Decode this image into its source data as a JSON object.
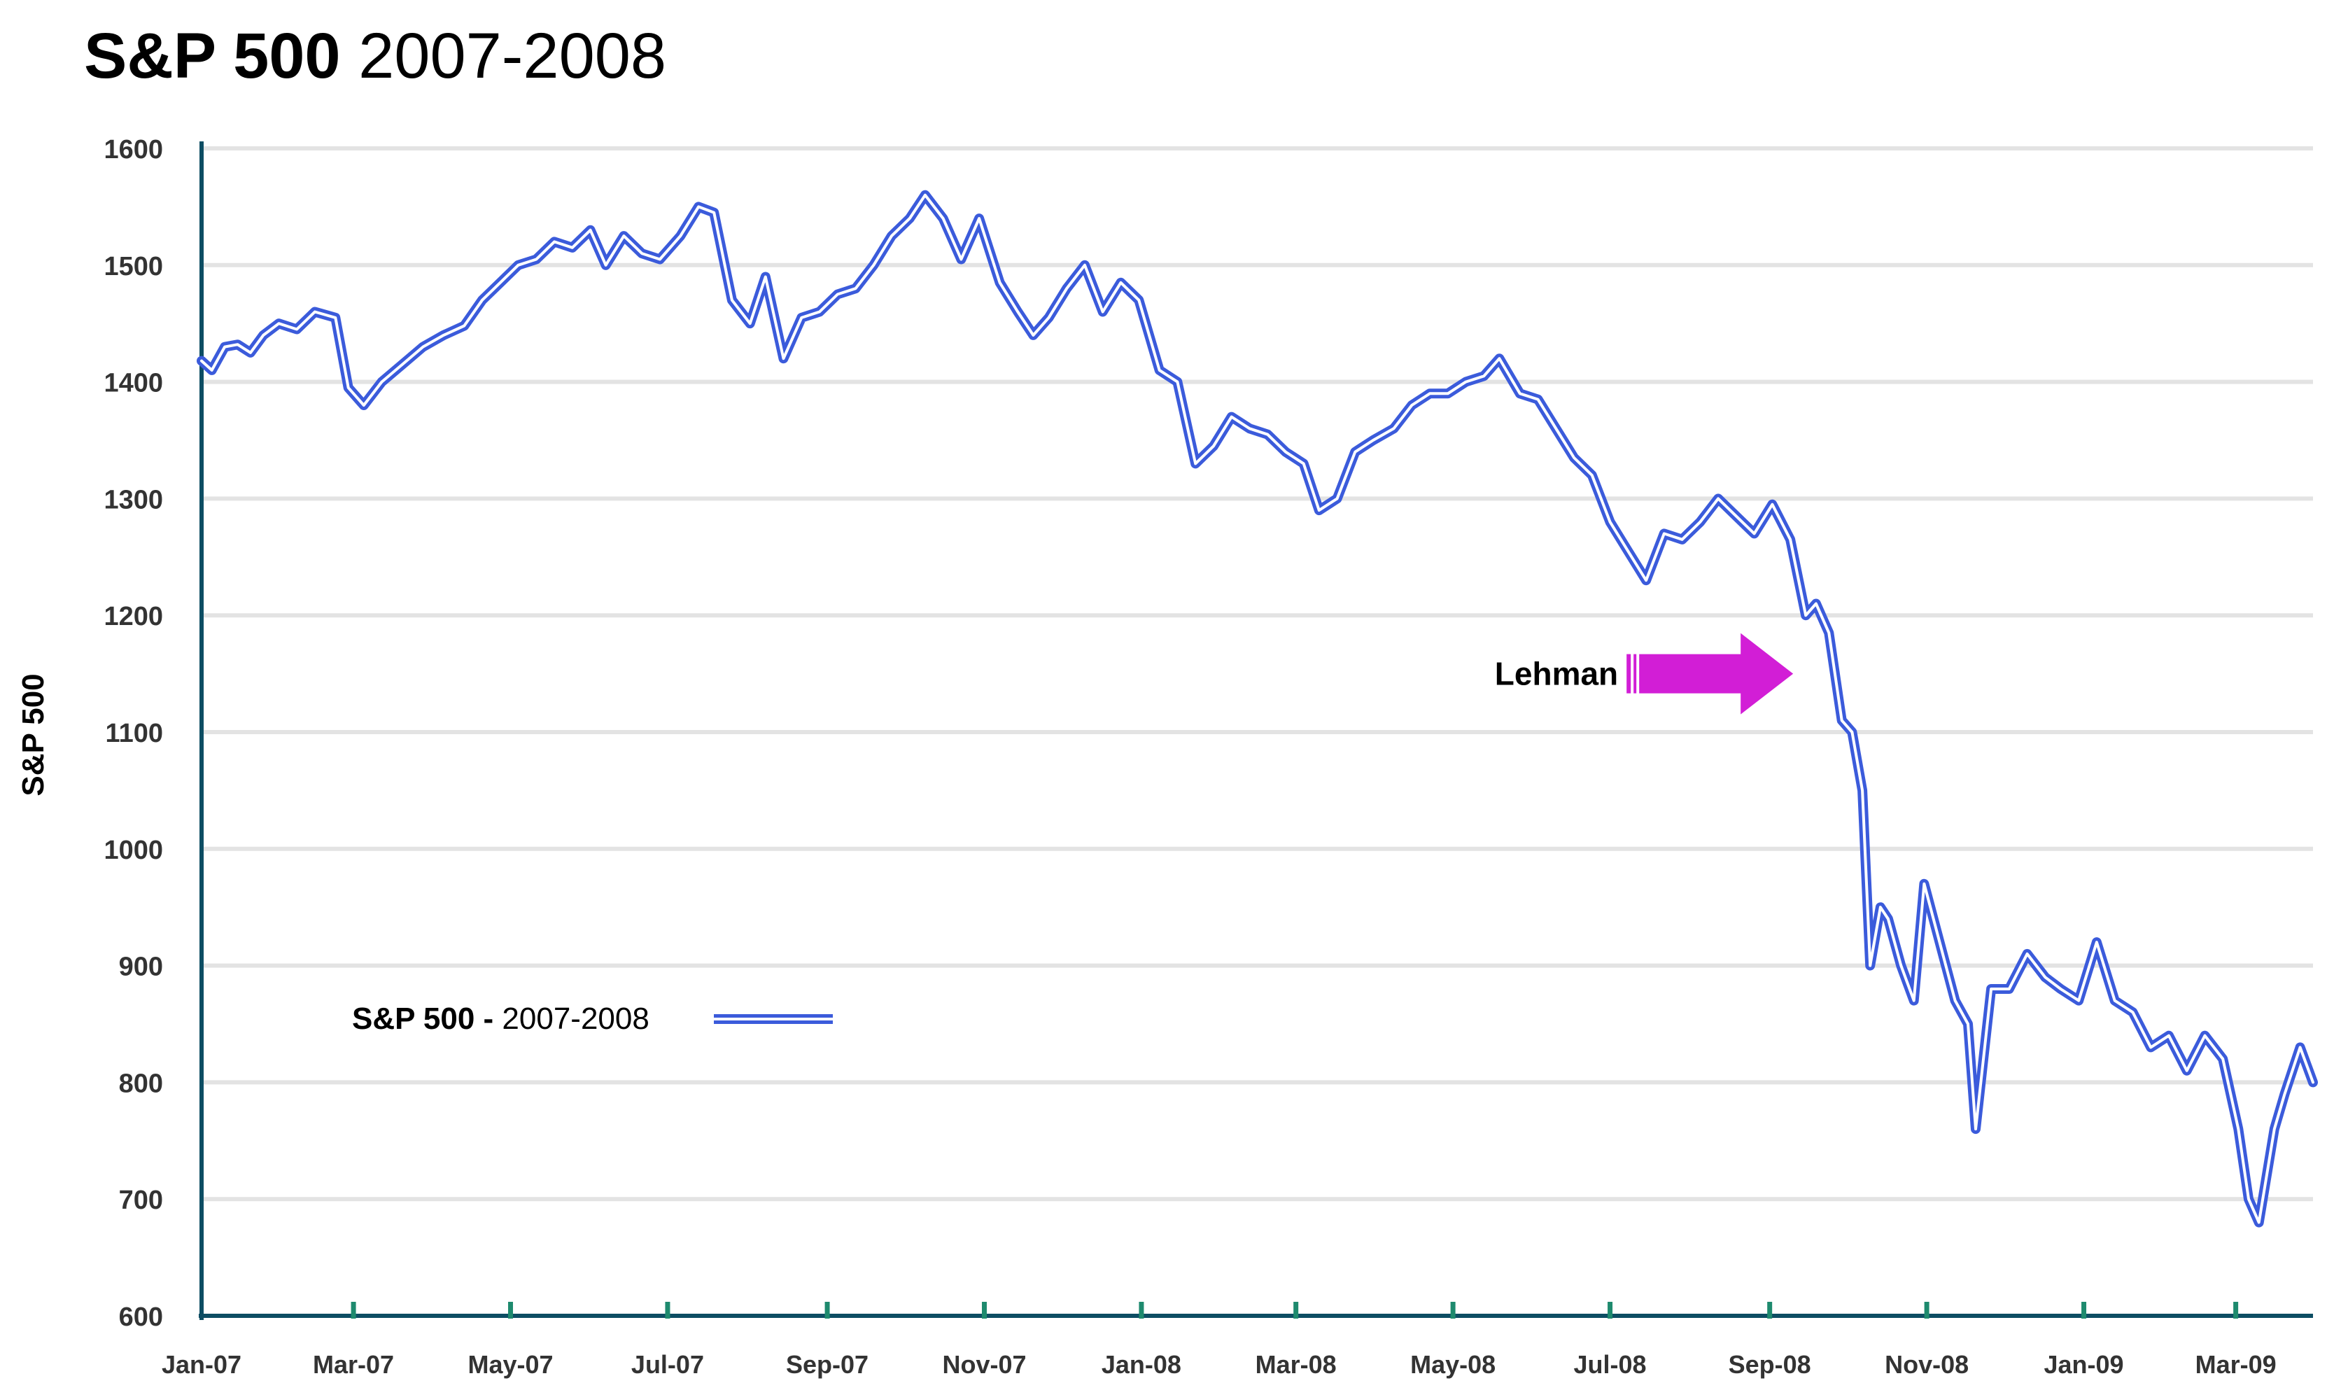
{
  "title": {
    "bold": "S&P 500",
    "regular": "2007-2008"
  },
  "colors": {
    "line": "#3b5bdb",
    "grid": "#e3e3e3",
    "axis": "#0d4d63",
    "tick": "#1e8a6e",
    "arrow": "#d21ed6",
    "text": "#000000",
    "label": "#333333"
  },
  "chart_data": {
    "type": "line",
    "title": "S&P 500 2007-2008",
    "ylabel": "S&P 500",
    "xlabel": "",
    "ylim": [
      600,
      1600
    ],
    "yticks": [
      1600,
      1500,
      1400,
      1300,
      1200,
      1100,
      1000,
      900,
      800,
      700,
      600
    ],
    "xlim": [
      "2007-01-01",
      "2009-03-31"
    ],
    "xticks": [
      {
        "date": "2007-01-01",
        "label": "Jan-07"
      },
      {
        "date": "2007-03-01",
        "label": "Mar-07"
      },
      {
        "date": "2007-05-01",
        "label": "May-07"
      },
      {
        "date": "2007-07-01",
        "label": "Jul-07"
      },
      {
        "date": "2007-09-01",
        "label": "Sep-07"
      },
      {
        "date": "2007-11-01",
        "label": "Nov-07"
      },
      {
        "date": "2008-01-01",
        "label": "Jan-08"
      },
      {
        "date": "2008-03-01",
        "label": "Mar-08"
      },
      {
        "date": "2008-05-01",
        "label": "May-08"
      },
      {
        "date": "2008-07-01",
        "label": "Jul-08"
      },
      {
        "date": "2008-09-01",
        "label": "Sep-08"
      },
      {
        "date": "2008-11-01",
        "label": "Nov-08"
      },
      {
        "date": "2009-01-01",
        "label": "Jan-09"
      },
      {
        "date": "2009-03-01",
        "label": "Mar-09"
      }
    ],
    "grid": true,
    "legend": {
      "position": "lower-left",
      "bold": "S&P 500 -",
      "regular": "2007-2008"
    },
    "annotation": {
      "text": "Lehman",
      "date": "2008-09-15"
    },
    "series": [
      {
        "name": "S&P 500 - 2007-2008",
        "x": [
          "2007-01-01",
          "2007-01-05",
          "2007-01-10",
          "2007-01-15",
          "2007-01-20",
          "2007-01-25",
          "2007-01-31",
          "2007-02-07",
          "2007-02-14",
          "2007-02-22",
          "2007-02-27",
          "2007-03-05",
          "2007-03-12",
          "2007-03-20",
          "2007-03-28",
          "2007-04-05",
          "2007-04-13",
          "2007-04-20",
          "2007-04-27",
          "2007-05-04",
          "2007-05-11",
          "2007-05-18",
          "2007-05-25",
          "2007-06-01",
          "2007-06-07",
          "2007-06-14",
          "2007-06-21",
          "2007-06-28",
          "2007-07-06",
          "2007-07-13",
          "2007-07-19",
          "2007-07-26",
          "2007-08-02",
          "2007-08-08",
          "2007-08-15",
          "2007-08-22",
          "2007-08-29",
          "2007-09-05",
          "2007-09-12",
          "2007-09-19",
          "2007-09-26",
          "2007-10-03",
          "2007-10-09",
          "2007-10-16",
          "2007-10-23",
          "2007-10-30",
          "2007-11-07",
          "2007-11-14",
          "2007-11-20",
          "2007-11-26",
          "2007-12-03",
          "2007-12-10",
          "2007-12-17",
          "2007-12-24",
          "2007-12-31",
          "2008-01-08",
          "2008-01-15",
          "2008-01-22",
          "2008-01-29",
          "2008-02-05",
          "2008-02-12",
          "2008-02-19",
          "2008-02-26",
          "2008-03-04",
          "2008-03-10",
          "2008-03-17",
          "2008-03-24",
          "2008-03-31",
          "2008-04-08",
          "2008-04-15",
          "2008-04-22",
          "2008-04-29",
          "2008-05-06",
          "2008-05-13",
          "2008-05-19",
          "2008-05-27",
          "2008-06-03",
          "2008-06-10",
          "2008-06-17",
          "2008-06-24",
          "2008-07-01",
          "2008-07-08",
          "2008-07-15",
          "2008-07-22",
          "2008-07-29",
          "2008-08-05",
          "2008-08-12",
          "2008-08-19",
          "2008-08-26",
          "2008-09-02",
          "2008-09-09",
          "2008-09-15",
          "2008-09-19",
          "2008-09-24",
          "2008-09-29",
          "2008-10-03",
          "2008-10-07",
          "2008-10-10",
          "2008-10-14",
          "2008-10-17",
          "2008-10-22",
          "2008-10-27",
          "2008-10-31",
          "2008-11-06",
          "2008-11-12",
          "2008-11-17",
          "2008-11-20",
          "2008-11-26",
          "2008-12-03",
          "2008-12-10",
          "2008-12-17",
          "2008-12-23",
          "2008-12-30",
          "2009-01-06",
          "2009-01-13",
          "2009-01-20",
          "2009-01-27",
          "2009-02-03",
          "2009-02-10",
          "2009-02-17",
          "2009-02-24",
          "2009-03-02",
          "2009-03-06",
          "2009-03-10",
          "2009-03-16",
          "2009-03-20",
          "2009-03-26",
          "2009-03-31"
        ],
        "y": [
          1418,
          1410,
          1430,
          1432,
          1425,
          1440,
          1450,
          1445,
          1460,
          1455,
          1395,
          1380,
          1400,
          1415,
          1430,
          1440,
          1448,
          1470,
          1485,
          1500,
          1505,
          1520,
          1515,
          1530,
          1500,
          1525,
          1510,
          1505,
          1525,
          1550,
          1545,
          1470,
          1450,
          1490,
          1420,
          1455,
          1460,
          1475,
          1480,
          1500,
          1525,
          1540,
          1560,
          1540,
          1505,
          1540,
          1485,
          1460,
          1440,
          1455,
          1480,
          1500,
          1460,
          1485,
          1470,
          1410,
          1400,
          1330,
          1345,
          1370,
          1360,
          1355,
          1340,
          1330,
          1290,
          1300,
          1340,
          1350,
          1360,
          1380,
          1390,
          1390,
          1400,
          1405,
          1420,
          1390,
          1385,
          1360,
          1335,
          1320,
          1280,
          1255,
          1230,
          1270,
          1265,
          1280,
          1300,
          1285,
          1270,
          1295,
          1265,
          1200,
          1210,
          1185,
          1110,
          1100,
          1050,
          900,
          950,
          940,
          900,
          870,
          970,
          920,
          870,
          850,
          760,
          880,
          880,
          910,
          890,
          880,
          870,
          920,
          870,
          860,
          830,
          840,
          810,
          840,
          820,
          760,
          700,
          680,
          760,
          790,
          830,
          800
        ]
      }
    ]
  }
}
